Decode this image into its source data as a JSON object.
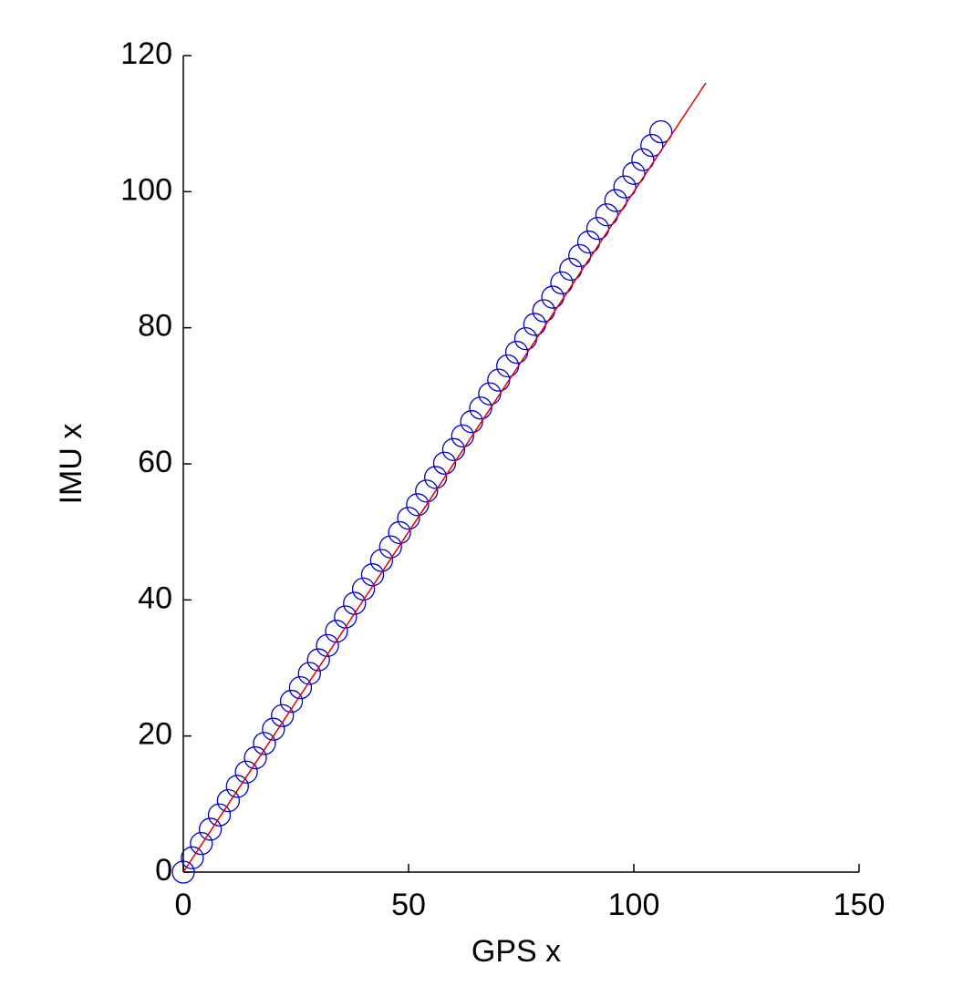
{
  "chart_data": {
    "type": "scatter",
    "xlabel": "GPS x",
    "ylabel": "IMU x",
    "xlim": [
      0,
      150
    ],
    "xticks": [
      0,
      50,
      100,
      150
    ],
    "ylim": [
      0,
      120
    ],
    "yticks": [
      0,
      20,
      40,
      60,
      80,
      100,
      120
    ],
    "series": [
      {
        "mode": "markers",
        "color": "#0000cc",
        "x": [
          0,
          2,
          4,
          6,
          8,
          10,
          12,
          14,
          16,
          18,
          20,
          22,
          24,
          26,
          28,
          30,
          32,
          34,
          36,
          38,
          40,
          42,
          44,
          46,
          48,
          50,
          52,
          54,
          56,
          58,
          60,
          62,
          64,
          66,
          68,
          70,
          72,
          74,
          76,
          78,
          80,
          82,
          84,
          86,
          88,
          90,
          92,
          94,
          96,
          98,
          100,
          102,
          104,
          106
        ],
        "y": [
          0,
          2.1,
          4.2,
          6.3,
          8.4,
          10.5,
          12.6,
          14.7,
          16.8,
          18.9,
          21.0,
          23.0,
          25.1,
          27.1,
          29.2,
          31.2,
          33.3,
          35.4,
          37.5,
          39.5,
          41.6,
          43.7,
          45.8,
          47.8,
          49.9,
          52.0,
          54.0,
          56.0,
          58.0,
          60.1,
          62.1,
          64.1,
          66.2,
          68.2,
          70.3,
          72.3,
          74.4,
          76.4,
          78.4,
          80.5,
          82.5,
          84.5,
          86.6,
          88.6,
          90.6,
          92.6,
          94.6,
          96.6,
          98.7,
          100.7,
          102.7,
          104.7,
          106.8,
          108.8
        ]
      },
      {
        "mode": "line",
        "color": "#dd0000",
        "x": [
          0,
          116
        ],
        "y": [
          0,
          116
        ]
      }
    ]
  }
}
